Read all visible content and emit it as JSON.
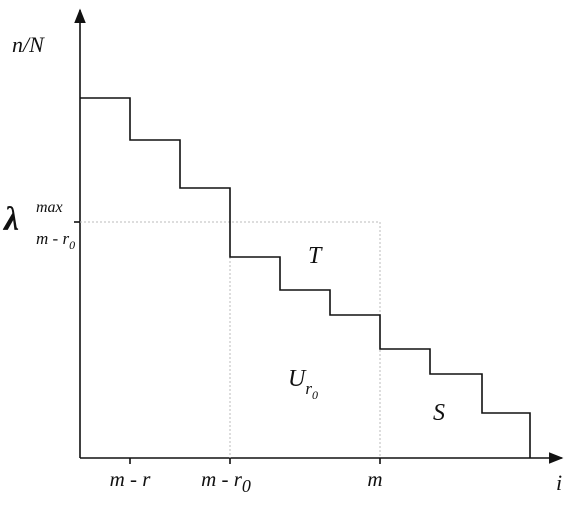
{
  "axes": {
    "y_label": "n/N",
    "x_label": "i"
  },
  "y_marker": {
    "symbol": "λ",
    "sup": "max",
    "sub": "m - r",
    "sub_sub": "0"
  },
  "x_ticks": [
    {
      "text": "m - r"
    },
    {
      "text": "m - r",
      "sub": "0"
    },
    {
      "text": "m"
    }
  ],
  "regions": [
    {
      "text": "T"
    },
    {
      "text": "U",
      "sub": "r",
      "sub_sub": "0"
    },
    {
      "text": "S"
    }
  ]
}
